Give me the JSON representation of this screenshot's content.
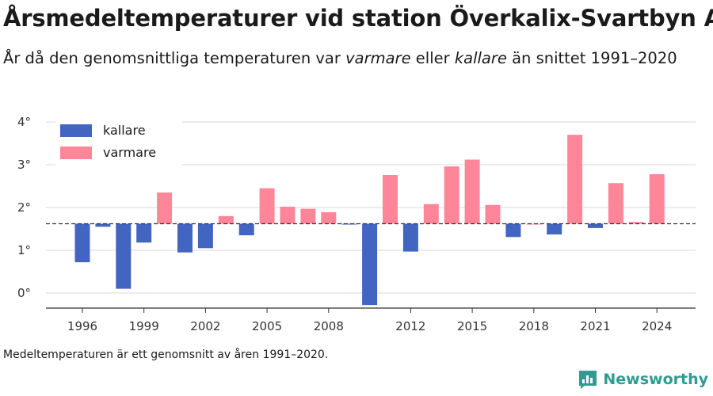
{
  "header": {
    "title": "Årsmedeltemperaturer vid station Överkalix-Svartbyn A",
    "subtitle_prefix": "År då den genomsnittliga temperaturen var ",
    "subtitle_warm": "varmare",
    "subtitle_mid": " eller ",
    "subtitle_cold": "kallare",
    "subtitle_suffix": " än snittet 1991–2020"
  },
  "footnote": "Medeltemperaturen är ett genomsnitt av åren 1991–2020.",
  "brand": {
    "name": "Newsworthy",
    "icon": "newsworthy-logo-icon",
    "color": "#2f9c92"
  },
  "chart_data": {
    "type": "bar",
    "baseline": 1.62,
    "ylim": [
      -0.3,
      4.1
    ],
    "yticks": [
      0,
      1,
      2,
      3,
      4
    ],
    "ytick_labels": [
      "0°",
      "1°",
      "2°",
      "3°",
      "4°"
    ],
    "xticks": [
      1996,
      1999,
      2002,
      2005,
      2008,
      2012,
      2015,
      2018,
      2021,
      2024
    ],
    "xtick_labels": [
      "1996",
      "1999",
      "2002",
      "2005",
      "2008",
      "2012",
      "2015",
      "2018",
      "2021",
      "2024"
    ],
    "grid": true,
    "legend_position": "top-left",
    "colors": {
      "kallare": "#4265c1",
      "varmare": "#ff8598"
    },
    "legend": [
      {
        "key": "kallare",
        "label": "kallare"
      },
      {
        "key": "varmare",
        "label": "varmare"
      }
    ],
    "categories": [
      1996,
      1997,
      1998,
      1999,
      2000,
      2001,
      2002,
      2003,
      2004,
      2005,
      2006,
      2007,
      2008,
      2009,
      2010,
      2011,
      2012,
      2013,
      2014,
      2015,
      2016,
      2017,
      2018,
      2019,
      2020,
      2021,
      2022,
      2023,
      2024
    ],
    "values": [
      0.72,
      1.55,
      0.1,
      1.18,
      2.35,
      0.95,
      1.05,
      1.8,
      1.35,
      2.45,
      2.02,
      1.97,
      1.89,
      1.61,
      -0.28,
      2.76,
      0.97,
      2.08,
      2.96,
      3.12,
      2.06,
      1.31,
      1.62,
      1.37,
      3.7,
      1.52,
      2.57,
      1.66,
      2.78
    ]
  }
}
